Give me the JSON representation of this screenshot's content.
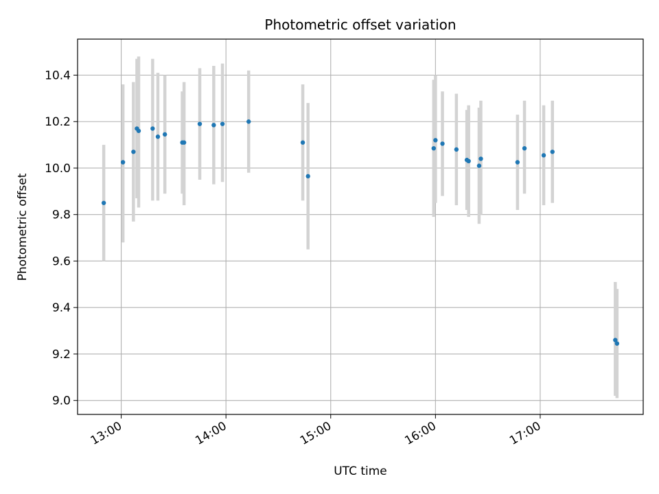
{
  "chart_data": {
    "type": "scatter",
    "title": "Photometric offset variation",
    "xlabel": "UTC time",
    "ylabel": "Photometric offset",
    "x_ticks": [
      "13:00",
      "14:00",
      "15:00",
      "16:00",
      "17:00"
    ],
    "y_ticks": [
      "9.0",
      "9.2",
      "9.4",
      "9.6",
      "9.8",
      "10.0",
      "10.2",
      "10.4"
    ],
    "xlim": [
      "12:35",
      "17:59"
    ],
    "ylim": [
      8.94,
      10.555
    ],
    "grid": true,
    "point_color": "#1f77b4",
    "errorbar_color": "#d3d3d3",
    "points": [
      {
        "x": "12:50",
        "y": 9.85,
        "lo": 9.6,
        "hi": 10.1
      },
      {
        "x": "13:01",
        "y": 10.025,
        "lo": 9.68,
        "hi": 10.36
      },
      {
        "x": "13:07",
        "y": 10.07,
        "lo": 9.77,
        "hi": 10.37
      },
      {
        "x": "13:09",
        "y": 10.17,
        "lo": 9.87,
        "hi": 10.47
      },
      {
        "x": "13:10",
        "y": 10.16,
        "lo": 9.83,
        "hi": 10.48
      },
      {
        "x": "13:18",
        "y": 10.17,
        "lo": 9.86,
        "hi": 10.47
      },
      {
        "x": "13:21",
        "y": 10.135,
        "lo": 9.86,
        "hi": 10.41
      },
      {
        "x": "13:25",
        "y": 10.145,
        "lo": 9.89,
        "hi": 10.4
      },
      {
        "x": "13:35",
        "y": 10.11,
        "lo": 9.89,
        "hi": 10.33
      },
      {
        "x": "13:36",
        "y": 10.11,
        "lo": 9.84,
        "hi": 10.37
      },
      {
        "x": "13:45",
        "y": 10.19,
        "lo": 9.95,
        "hi": 10.43
      },
      {
        "x": "13:53",
        "y": 10.185,
        "lo": 9.93,
        "hi": 10.44
      },
      {
        "x": "13:58",
        "y": 10.19,
        "lo": 9.94,
        "hi": 10.45
      },
      {
        "x": "14:13",
        "y": 10.2,
        "lo": 9.98,
        "hi": 10.42
      },
      {
        "x": "14:44",
        "y": 10.11,
        "lo": 9.86,
        "hi": 10.36
      },
      {
        "x": "14:47",
        "y": 9.965,
        "lo": 9.65,
        "hi": 10.28
      },
      {
        "x": "15:59",
        "y": 10.085,
        "lo": 9.79,
        "hi": 10.38
      },
      {
        "x": "16:00",
        "y": 10.12,
        "lo": 9.85,
        "hi": 10.4
      },
      {
        "x": "16:04",
        "y": 10.105,
        "lo": 9.88,
        "hi": 10.33
      },
      {
        "x": "16:12",
        "y": 10.08,
        "lo": 9.84,
        "hi": 10.32
      },
      {
        "x": "16:18",
        "y": 10.035,
        "lo": 9.82,
        "hi": 10.25
      },
      {
        "x": "16:19",
        "y": 10.03,
        "lo": 9.79,
        "hi": 10.27
      },
      {
        "x": "16:25",
        "y": 10.01,
        "lo": 9.76,
        "hi": 10.26
      },
      {
        "x": "16:26",
        "y": 10.04,
        "lo": 9.8,
        "hi": 10.29
      },
      {
        "x": "16:47",
        "y": 10.025,
        "lo": 9.82,
        "hi": 10.23
      },
      {
        "x": "16:51",
        "y": 10.085,
        "lo": 9.89,
        "hi": 10.29
      },
      {
        "x": "17:02",
        "y": 10.055,
        "lo": 9.84,
        "hi": 10.27
      },
      {
        "x": "17:07",
        "y": 10.07,
        "lo": 9.85,
        "hi": 10.29
      },
      {
        "x": "17:43",
        "y": 9.26,
        "lo": 9.02,
        "hi": 9.51
      },
      {
        "x": "17:44",
        "y": 9.245,
        "lo": 9.01,
        "hi": 9.48
      }
    ]
  }
}
